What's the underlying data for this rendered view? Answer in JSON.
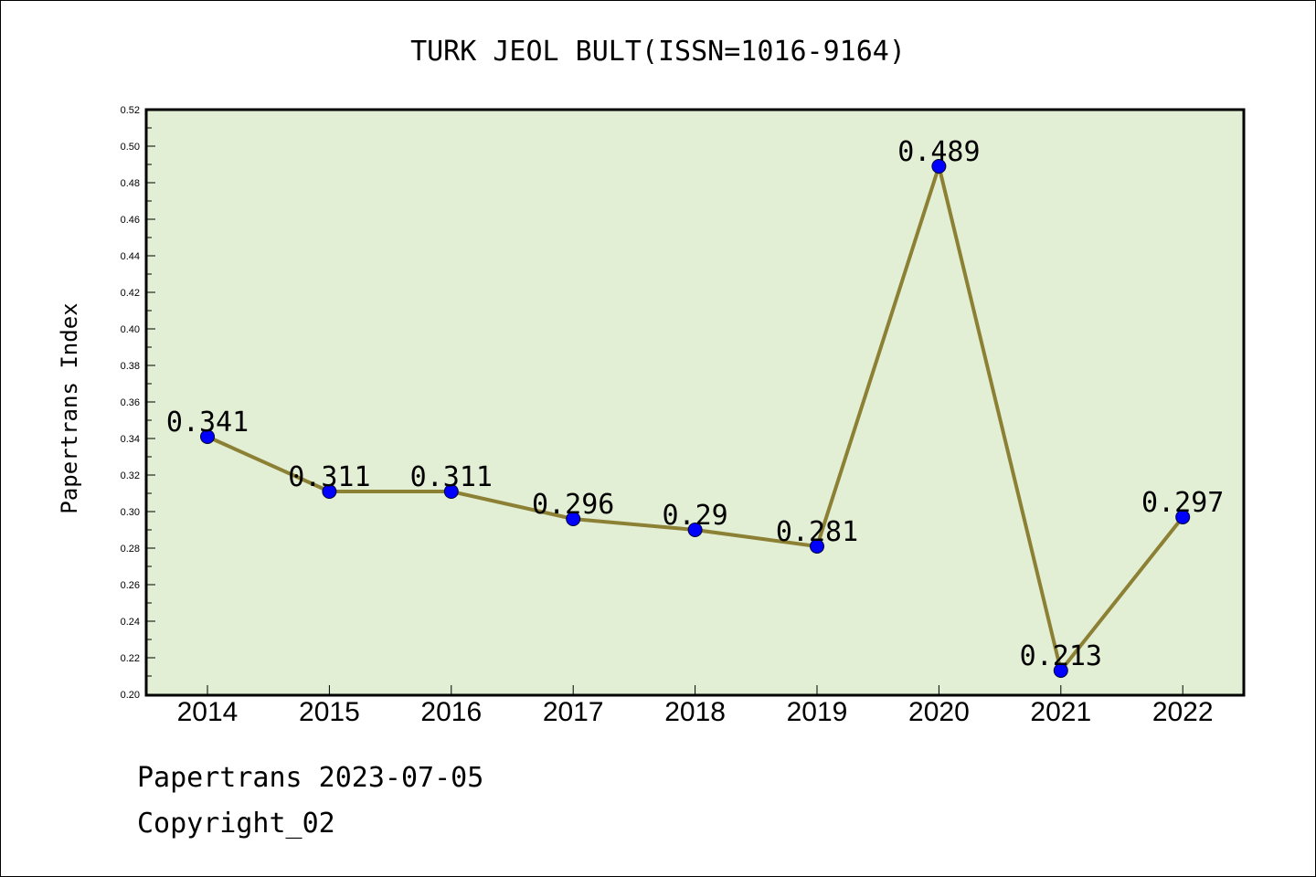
{
  "chart_data": {
    "type": "line",
    "title": "TURK JEOL BULT(ISSN=1016-9164)",
    "ylabel": "Papertrans Index",
    "xlabel": "",
    "categories": [
      "2014",
      "2015",
      "2016",
      "2017",
      "2018",
      "2019",
      "2020",
      "2021",
      "2022"
    ],
    "series": [
      {
        "values": [
          0.341,
          0.311,
          0.311,
          0.296,
          0.29,
          0.281,
          0.489,
          0.213,
          0.297
        ],
        "data_labels": [
          "0.341",
          "0.311",
          "0.311",
          "0.296",
          "0.29",
          "0.281",
          "0.489",
          "0.213",
          "0.297"
        ]
      }
    ],
    "ylim": [
      0.2,
      0.52
    ],
    "y_ticks": [
      "0.20",
      "0.22",
      "0.24",
      "0.26",
      "0.28",
      "0.30",
      "0.32",
      "0.34",
      "0.36",
      "0.38",
      "0.40",
      "0.42",
      "0.44",
      "0.46",
      "0.48",
      "0.50",
      "0.52"
    ],
    "grid": false,
    "colors": {
      "plot_background": "#e2efd4",
      "line": "#8c8035",
      "marker": "#0000ff"
    }
  },
  "footer": {
    "line1": "Papertrans 2023-07-05",
    "line2": "Copyright_02"
  }
}
